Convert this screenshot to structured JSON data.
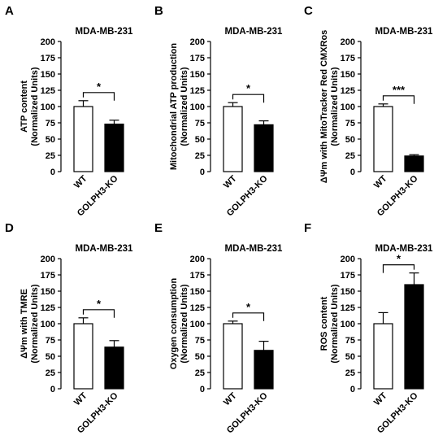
{
  "figure": {
    "panels": [
      "A",
      "B",
      "C",
      "D",
      "E",
      "F"
    ]
  },
  "chart_data": [
    {
      "panel": "A",
      "type": "bar",
      "title": "MDA-MB-231",
      "ylabel_lines": [
        "ATP content",
        "(Normalized Units)"
      ],
      "categories": [
        "WT",
        "GOLPH3-KO"
      ],
      "values": [
        100,
        73
      ],
      "errors": [
        9,
        6
      ],
      "fills": [
        "#ffffff",
        "#000000"
      ],
      "ylim": [
        0,
        200
      ],
      "yticks": [
        "0",
        "25",
        "50",
        "75",
        "100",
        "125",
        "150",
        "175",
        "200"
      ],
      "significance": "*"
    },
    {
      "panel": "B",
      "type": "bar",
      "title": "MDA-MB-231",
      "ylabel_lines": [
        "Mitochondrial ATP production",
        "(Normalized Units)"
      ],
      "categories": [
        "WT",
        "GOLPH3-KO"
      ],
      "values": [
        100,
        72
      ],
      "errors": [
        6,
        6
      ],
      "fills": [
        "#ffffff",
        "#000000"
      ],
      "ylim": [
        0,
        200
      ],
      "yticks": [
        "0",
        "25",
        "50",
        "75",
        "100",
        "125",
        "150",
        "175",
        "200"
      ],
      "significance": "*"
    },
    {
      "panel": "C",
      "type": "bar",
      "title": "MDA-MB-231",
      "ylabel_lines": [
        "ΔΨm with MitoTracker Red CMXRos",
        "(Normalized Units)"
      ],
      "categories": [
        "WT",
        "GOLPH3-KO"
      ],
      "values": [
        100,
        24
      ],
      "errors": [
        4,
        2
      ],
      "fills": [
        "#ffffff",
        "#000000"
      ],
      "ylim": [
        0,
        200
      ],
      "yticks": [
        "0",
        "25",
        "50",
        "75",
        "100",
        "125",
        "150",
        "175",
        "200"
      ],
      "significance": "***"
    },
    {
      "panel": "D",
      "type": "bar",
      "title": "MDA-MB-231",
      "ylabel_lines": [
        "ΔΨm with TMRE",
        "(Normalized Units)"
      ],
      "categories": [
        "WT",
        "GOLPH3-KO"
      ],
      "values": [
        100,
        64
      ],
      "errors": [
        9,
        10
      ],
      "fills": [
        "#ffffff",
        "#000000"
      ],
      "ylim": [
        0,
        200
      ],
      "yticks": [
        "0",
        "25",
        "50",
        "75",
        "100",
        "125",
        "150",
        "175",
        "200"
      ],
      "significance": "*"
    },
    {
      "panel": "E",
      "type": "bar",
      "title": "MDA-MB-231",
      "ylabel_lines": [
        "Oxygen consumption",
        "(Normalized Units)"
      ],
      "categories": [
        "WT",
        "GOLPH3-KO"
      ],
      "values": [
        100,
        59
      ],
      "errors": [
        4,
        14
      ],
      "fills": [
        "#ffffff",
        "#000000"
      ],
      "ylim": [
        0,
        200
      ],
      "yticks": [
        "0",
        "25",
        "50",
        "75",
        "100",
        "125",
        "150",
        "175",
        "200"
      ],
      "significance": "*"
    },
    {
      "panel": "F",
      "type": "bar",
      "title": "MDA-MB-231",
      "ylabel_lines": [
        "ROS content",
        "(Normalized Units)"
      ],
      "categories": [
        "WT",
        "GOLPH3-KO"
      ],
      "values": [
        100,
        160
      ],
      "errors": [
        17,
        18
      ],
      "fills": [
        "#ffffff",
        "#000000"
      ],
      "ylim": [
        0,
        200
      ],
      "yticks": [
        "0",
        "25",
        "50",
        "75",
        "100",
        "125",
        "150",
        "175",
        "200"
      ],
      "significance": "*"
    }
  ]
}
